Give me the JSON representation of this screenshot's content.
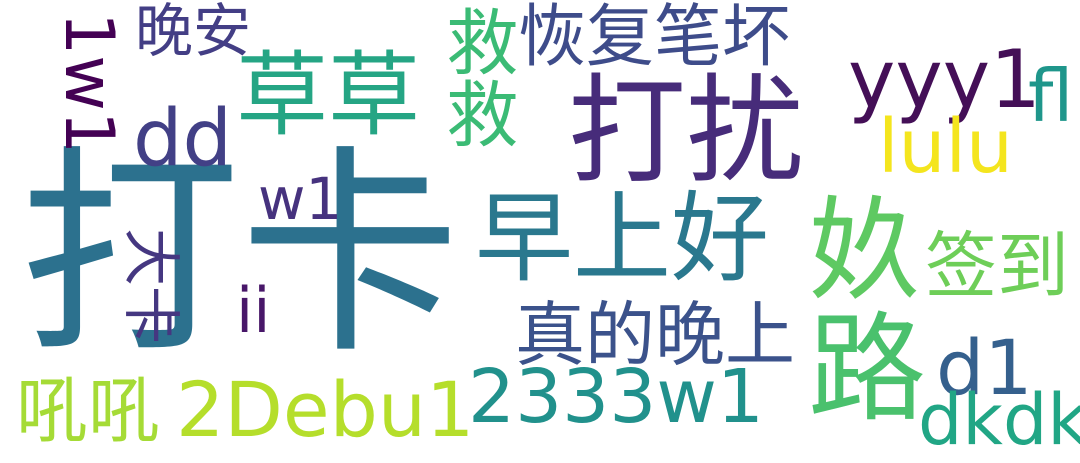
{
  "words": [
    {
      "id": "daka",
      "text": "打卡",
      "color": "#2c718e"
    },
    {
      "id": "darao",
      "text": "打扰",
      "color": "#472c7a"
    },
    {
      "id": "zaoshanghao",
      "text": "早上好",
      "color": "#2a788e"
    },
    {
      "id": "caocao",
      "text": "草草",
      "color": "#25a584"
    },
    {
      "id": "jiujiu",
      "text": "救救",
      "color": "#3bbb75"
    },
    {
      "id": "huifu",
      "text": "恢复笔坏",
      "color": "#3e4c8a"
    },
    {
      "id": "wanan",
      "text": "晚安",
      "color": "#433e85"
    },
    {
      "id": "one_w1",
      "text": "1w1",
      "color": "#440154"
    },
    {
      "id": "dd",
      "text": "dd",
      "color": "#424086"
    },
    {
      "id": "yyy1",
      "text": "yyy1",
      "color": "#440f57"
    },
    {
      "id": "fl",
      "text": "fl",
      "color": "#1f968b"
    },
    {
      "id": "lulu",
      "text": "lulu",
      "color": "#f4e51e"
    },
    {
      "id": "w1",
      "text": "w1",
      "color": "#46327e"
    },
    {
      "id": "kui",
      "text": "奺",
      "color": "#5ec962"
    },
    {
      "id": "dake",
      "text": "大卡",
      "color": "#453781"
    },
    {
      "id": "ii",
      "text": "ii",
      "color": "#481769"
    },
    {
      "id": "qiandao",
      "text": "签到",
      "color": "#6ece58"
    },
    {
      "id": "zhende",
      "text": "真的晚上",
      "color": "#3b528b"
    },
    {
      "id": "lu",
      "text": "路",
      "color": "#4ac16d"
    },
    {
      "id": "d1",
      "text": "d1",
      "color": "#35608d"
    },
    {
      "id": "houhou",
      "text": "吼吼",
      "color": "#a5db36"
    },
    {
      "id": "debu",
      "text": "2Debu1",
      "color": "#b5de2b"
    },
    {
      "id": "w2333",
      "text": "2333w1",
      "color": "#21918c"
    },
    {
      "id": "dkdk",
      "text": "dkdk",
      "color": "#21a685"
    }
  ]
}
